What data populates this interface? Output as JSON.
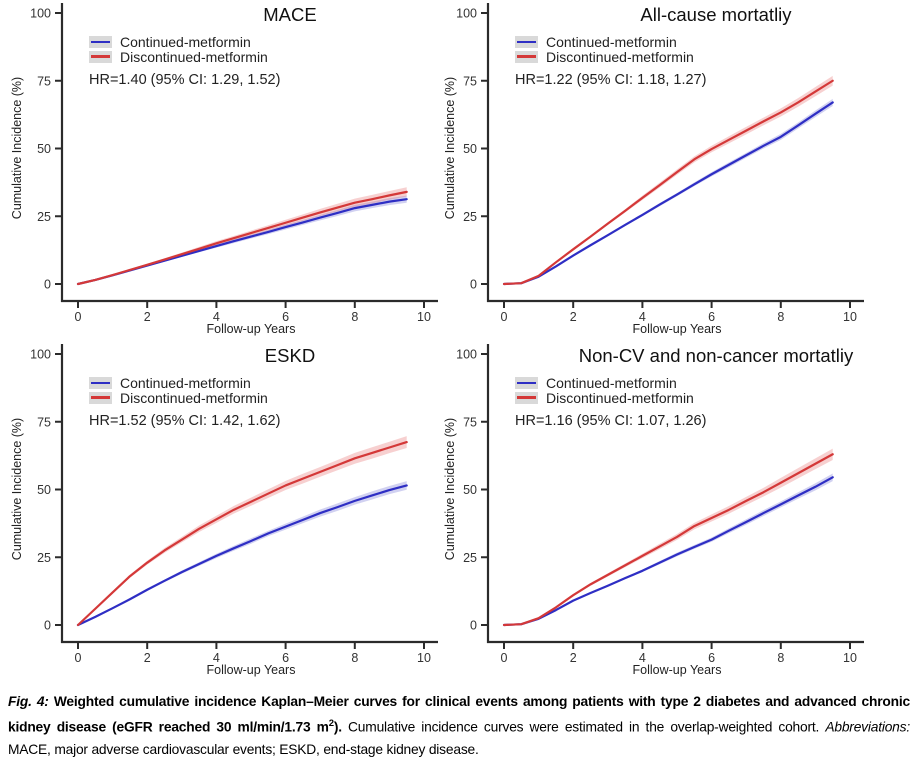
{
  "colors": {
    "axis": "#2b2b2b",
    "tick_label": "#333333",
    "legend_key_bg": "#d9d9d9",
    "continued_blue": "#2e2ec4",
    "discontinued_red": "#d43838",
    "blue_band": "rgba(90,90,205,0.28)",
    "red_band": "rgba(228,100,100,0.30)"
  },
  "figure": {
    "caption": {
      "fig_label": "Fig. 4:",
      "bold_text": "Weighted cumulative incidence Kaplan–Meier curves for clinical events among patients with type 2 diabetes and advanced chronic kidney disease (eGFR reached 30 ml/min/1.73 m",
      "bold_sup": "2",
      "bold_close": ").",
      "normal_text": "Cumulative incidence curves were estimated in the overlap-weighted cohort.",
      "abbrev_label": "Abbreviations:",
      "abbrev_text": "MACE, major adverse cardiovascular events; ESKD, end-stage kidney disease."
    }
  },
  "chart_data": [
    {
      "type": "line",
      "title": "MACE",
      "xlabel": "Follow-up Years",
      "ylabel": "Cumulative Incidence (%)",
      "hr_label": "HR=1.40 (95% CI: 1.29, 1.52)",
      "xlim": [
        0,
        10.5
      ],
      "ylim": [
        0,
        100
      ],
      "xticks": [
        0,
        2,
        4,
        6,
        8,
        10
      ],
      "yticks": [
        0,
        25,
        50,
        75,
        100
      ],
      "grid": false,
      "legend_position": "top-left",
      "x": [
        0,
        0.5,
        1,
        1.5,
        2,
        2.5,
        3,
        3.5,
        4,
        4.5,
        5,
        5.5,
        6,
        6.5,
        7,
        7.5,
        8,
        8.5,
        9,
        9.5
      ],
      "series": [
        {
          "name": "Continued-metformin",
          "color": "#2e2ec4",
          "band_color": "rgba(90,90,205,0.28)",
          "values": [
            0,
            1.5,
            3.2,
            5,
            6.8,
            8.6,
            10.4,
            12.2,
            14,
            15.8,
            17.5,
            19.2,
            21,
            22.7,
            24.5,
            26.2,
            28,
            29.2,
            30.4,
            31.3
          ],
          "band": [
            0,
            0.1,
            0.1,
            0.2,
            0.3,
            0.4,
            0.4,
            0.5,
            0.6,
            0.7,
            0.7,
            0.8,
            0.9,
            0.9,
            1,
            1.1,
            1.2,
            1.2,
            1.3,
            1.3
          ]
        },
        {
          "name": "Discontinued-metformin",
          "color": "#d43838",
          "band_color": "rgba(228,100,100,0.30)",
          "values": [
            0,
            1.5,
            3.3,
            5.2,
            7.1,
            9,
            11,
            13,
            15,
            16.9,
            18.8,
            20.7,
            22.6,
            24.5,
            26.4,
            28.2,
            30,
            31.3,
            32.7,
            34
          ],
          "band": [
            0,
            0.1,
            0.2,
            0.3,
            0.4,
            0.5,
            0.6,
            0.7,
            0.8,
            0.8,
            0.9,
            1,
            1.1,
            1.2,
            1.3,
            1.4,
            1.5,
            1.6,
            1.6,
            1.7
          ]
        }
      ]
    },
    {
      "type": "line",
      "title": "All-cause mortatliy",
      "xlabel": "Follow-up Years",
      "ylabel": "Cumulative Incidence (%)",
      "hr_label": "HR=1.22 (95% CI: 1.18, 1.27)",
      "xlim": [
        0,
        10.5
      ],
      "ylim": [
        0,
        100
      ],
      "xticks": [
        0,
        2,
        4,
        6,
        8,
        10
      ],
      "yticks": [
        0,
        25,
        50,
        75,
        100
      ],
      "grid": false,
      "legend_position": "top-left",
      "x": [
        0,
        0.5,
        1,
        1.5,
        2,
        2.5,
        3,
        3.5,
        4,
        4.5,
        5,
        5.5,
        6,
        6.5,
        7,
        7.5,
        8,
        8.5,
        9,
        9.5
      ],
      "series": [
        {
          "name": "Continued-metformin",
          "color": "#2e2ec4",
          "band_color": "rgba(90,90,205,0.28)",
          "values": [
            0,
            0.3,
            2.7,
            6.5,
            10.5,
            14.3,
            18,
            21.8,
            25.5,
            29.3,
            33,
            36.8,
            40.5,
            44,
            47.5,
            51,
            54.3,
            58.5,
            62.8,
            67
          ],
          "band": [
            0,
            0,
            0.1,
            0.1,
            0.2,
            0.3,
            0.3,
            0.4,
            0.5,
            0.6,
            0.6,
            0.7,
            0.8,
            0.9,
            0.9,
            1,
            1.1,
            1.1,
            1.2,
            1.3
          ]
        },
        {
          "name": "Discontinued-metformin",
          "color": "#d43838",
          "band_color": "rgba(228,100,100,0.30)",
          "values": [
            0,
            0.3,
            3,
            8,
            12.8,
            17.5,
            22.3,
            27,
            31.8,
            36.5,
            41.3,
            46,
            49.8,
            53.2,
            56.6,
            60,
            63.3,
            67,
            71,
            75
          ],
          "band": [
            0,
            0,
            0.1,
            0.2,
            0.3,
            0.4,
            0.5,
            0.6,
            0.8,
            0.9,
            1,
            1.1,
            1.2,
            1.3,
            1.4,
            1.4,
            1.5,
            1.6,
            1.7,
            1.8
          ]
        }
      ]
    },
    {
      "type": "line",
      "title": "ESKD",
      "xlabel": "Follow-up Years",
      "ylabel": "Cumulative Incidence (%)",
      "hr_label": "HR=1.52 (95% CI: 1.42, 1.62)",
      "xlim": [
        0,
        10.5
      ],
      "ylim": [
        0,
        100
      ],
      "xticks": [
        0,
        2,
        4,
        6,
        8,
        10
      ],
      "yticks": [
        0,
        25,
        50,
        75,
        100
      ],
      "grid": false,
      "legend_position": "top-left",
      "x": [
        0,
        0.5,
        1,
        1.5,
        2,
        2.5,
        3,
        3.5,
        4,
        4.5,
        5,
        5.5,
        6,
        6.5,
        7,
        7.5,
        8,
        8.5,
        9,
        9.5
      ],
      "series": [
        {
          "name": "Continued-metformin",
          "color": "#2e2ec4",
          "band_color": "rgba(90,90,205,0.28)",
          "values": [
            0,
            3,
            6.2,
            9.5,
            13,
            16.3,
            19.5,
            22.5,
            25.5,
            28.3,
            31,
            33.8,
            36.3,
            38.8,
            41.3,
            43.5,
            45.8,
            47.8,
            49.8,
            51.5
          ],
          "band": [
            0,
            0.1,
            0.2,
            0.3,
            0.4,
            0.5,
            0.6,
            0.7,
            0.8,
            0.9,
            1,
            1,
            1.1,
            1.2,
            1.3,
            1.4,
            1.4,
            1.5,
            1.5,
            1.6
          ]
        },
        {
          "name": "Discontinued-metformin",
          "color": "#d43838",
          "band_color": "rgba(228,100,100,0.30)",
          "values": [
            0,
            6,
            12,
            18,
            23,
            27.5,
            31.5,
            35.5,
            39,
            42.5,
            45.5,
            48.5,
            51.5,
            54,
            56.5,
            59,
            61.5,
            63.5,
            65.5,
            67.5
          ],
          "band": [
            0,
            0.2,
            0.4,
            0.6,
            0.7,
            0.9,
            1,
            1.2,
            1.3,
            1.4,
            1.5,
            1.6,
            1.7,
            1.8,
            1.8,
            1.9,
            2,
            2.1,
            2.1,
            2.2
          ]
        }
      ]
    },
    {
      "type": "line",
      "title": "Non-CV and non-cancer mortatliy",
      "xlabel": "Follow-up Years",
      "ylabel": "Cumulative Incidence (%)",
      "hr_label": "HR=1.16 (95% CI: 1.07, 1.26)",
      "xlim": [
        0,
        10.5
      ],
      "ylim": [
        0,
        100
      ],
      "xticks": [
        0,
        2,
        4,
        6,
        8,
        10
      ],
      "yticks": [
        0,
        25,
        50,
        75,
        100
      ],
      "grid": false,
      "legend_position": "top-left",
      "x": [
        0,
        0.5,
        1,
        1.5,
        2,
        2.5,
        3,
        3.5,
        4,
        4.5,
        5,
        5.5,
        6,
        6.5,
        7,
        7.5,
        8,
        8.5,
        9,
        9.5
      ],
      "series": [
        {
          "name": "Continued-metformin",
          "color": "#2e2ec4",
          "band_color": "rgba(90,90,205,0.28)",
          "values": [
            0,
            0.3,
            2.3,
            5.5,
            9,
            11.8,
            14.5,
            17.3,
            20,
            23,
            26,
            28.8,
            31.5,
            34.8,
            38,
            41.3,
            44.5,
            47.8,
            51,
            54.5
          ],
          "band": [
            0,
            0,
            0.1,
            0.1,
            0.2,
            0.3,
            0.4,
            0.4,
            0.5,
            0.6,
            0.7,
            0.7,
            0.8,
            0.9,
            1,
            1.1,
            1.1,
            1.2,
            1.3,
            1.4
          ]
        },
        {
          "name": "Discontinued-metformin",
          "color": "#d43838",
          "band_color": "rgba(228,100,100,0.30)",
          "values": [
            0,
            0.3,
            2.5,
            6.5,
            11,
            15,
            18.5,
            22,
            25.5,
            29,
            32.5,
            36.5,
            39.5,
            42.5,
            45.8,
            49,
            52.5,
            56,
            59.5,
            63
          ],
          "band": [
            0,
            0,
            0.1,
            0.2,
            0.4,
            0.5,
            0.6,
            0.7,
            0.8,
            1,
            1.1,
            1.2,
            1.3,
            1.4,
            1.5,
            1.6,
            1.8,
            1.9,
            2,
            2.1
          ]
        }
      ]
    }
  ]
}
